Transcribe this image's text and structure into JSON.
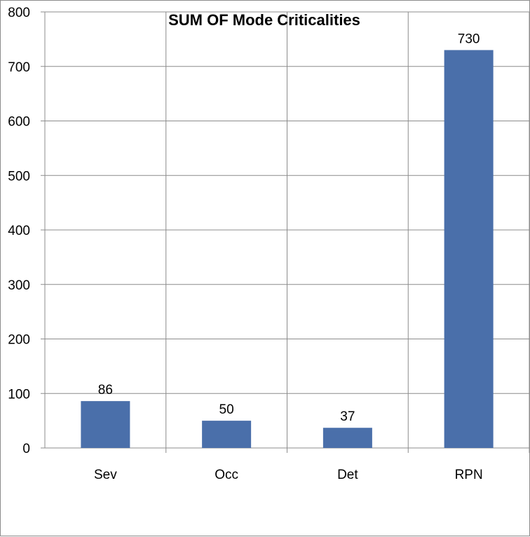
{
  "chart_data": {
    "type": "bar",
    "title": "SUM OF Mode Criticalities",
    "categories": [
      "Sev",
      "Occ",
      "Det",
      "RPN"
    ],
    "values": [
      86,
      50,
      37,
      730
    ],
    "data_labels": [
      "86",
      "50",
      "37",
      "730"
    ],
    "ylim": [
      0,
      800
    ],
    "yticks": [
      0,
      100,
      200,
      300,
      400,
      500,
      600,
      700,
      800
    ],
    "xlabel": "",
    "ylabel": "",
    "grid": true,
    "legend": "none",
    "bar_color": "#4a6faa",
    "grid_color": "#8c8c8c"
  }
}
